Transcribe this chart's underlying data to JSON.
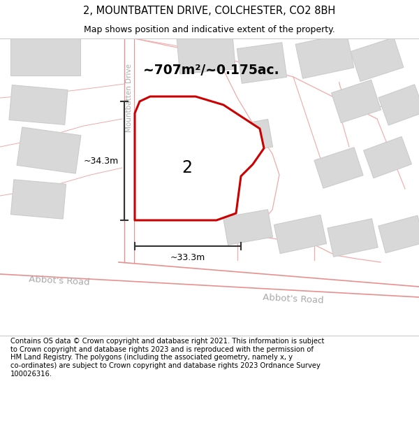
{
  "title": "2, MOUNTBATTEN DRIVE, COLCHESTER, CO2 8BH",
  "subtitle": "Map shows position and indicative extent of the property.",
  "footer": "Contains OS data © Crown copyright and database right 2021. This information is subject\nto Crown copyright and database rights 2023 and is reproduced with the permission of\nHM Land Registry. The polygons (including the associated geometry, namely x, y\nco-ordinates) are subject to Crown copyright and database rights 2023 Ordnance Survey\n100026316.",
  "map_bg": "#f8f8f8",
  "building_fill": "#d8d8d8",
  "building_edge": "#cccccc",
  "road_line_color": "#f0aaaa",
  "road_line_color2": "#e89090",
  "property_stroke": "#cc0000",
  "property_fill": "#ffffff",
  "property_label": "2",
  "area_label": "~707m²/~0.175ac.",
  "dim_label_h": "~34.3m",
  "dim_label_w": "~33.3m",
  "road_label1": "Abbot's Road",
  "road_label2": "Abbot's Road",
  "street_label": "Mountbatten Drive",
  "dim_color": "#333333",
  "street_label_color": "#aaaaaa",
  "road_label_color": "#aaaaaa",
  "fig_width": 6.0,
  "fig_height": 6.25,
  "title_fontsize": 10.5,
  "subtitle_fontsize": 9,
  "footer_fontsize": 7.2
}
